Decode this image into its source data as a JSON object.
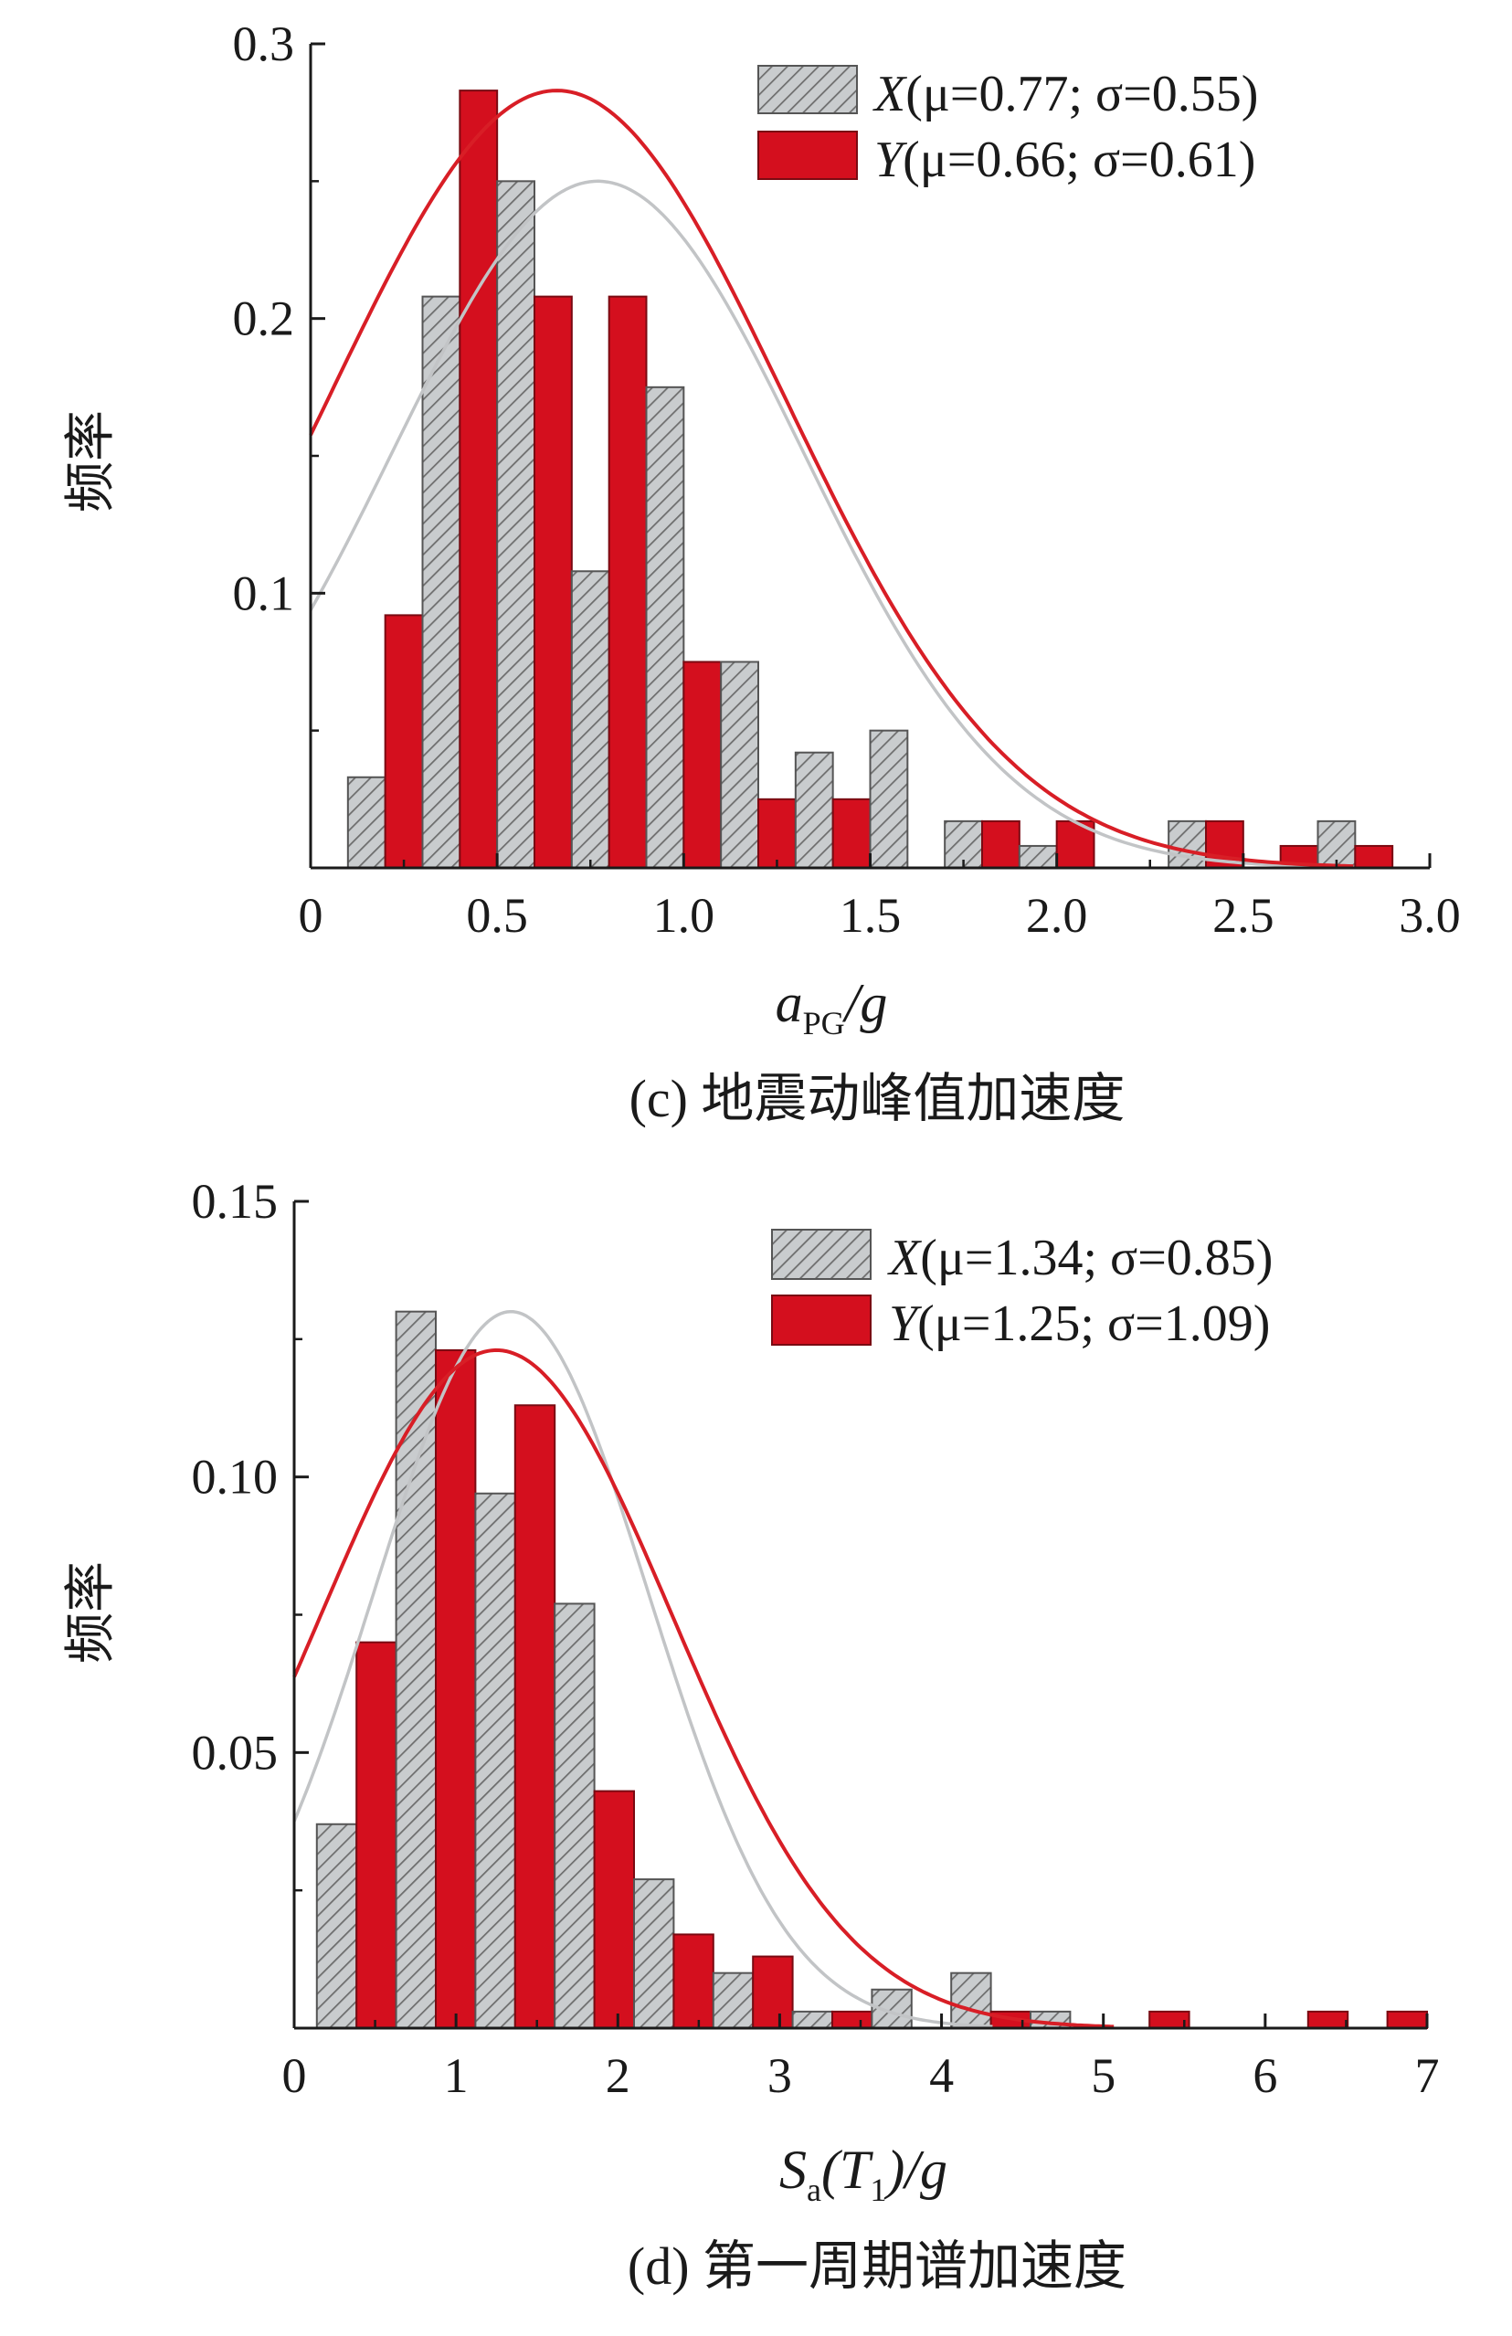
{
  "colors": {
    "x_bar_fill": "#c9ccce",
    "x_bar_hatch": "#6d6d6d",
    "y_bar_fill": "#d40f1e",
    "x_curve": "#c2c4c6",
    "y_curve": "#d81e26"
  },
  "chart_data": [
    {
      "type": "bar",
      "caption": "(c) 地震动峰值加速度",
      "ylabel": "频率",
      "xlabel": {
        "main": "a",
        "sub": "PG",
        "tail": "/g"
      },
      "xlim": [
        0,
        3.0
      ],
      "ylim": [
        0,
        0.3
      ],
      "xticks": [
        0,
        0.5,
        1.0,
        1.5,
        2.0,
        2.5,
        3.0
      ],
      "xtick_labels": [
        "0",
        "0.5",
        "1.0",
        "1.5",
        "2.0",
        "2.5",
        "3.0"
      ],
      "yticks": [
        0.1,
        0.2,
        0.3
      ],
      "ytick_labels": [
        "0.1",
        "0.2",
        "0.3"
      ],
      "x_minor_ticks": [
        0.25,
        0.75,
        1.25,
        1.75,
        2.25,
        2.75
      ],
      "y_minor_ticks": [
        0.05,
        0.15,
        0.25
      ],
      "bin_edges": [
        0.1,
        0.3,
        0.5,
        0.7,
        0.9,
        1.1,
        1.3,
        1.5,
        1.7,
        1.9,
        2.1,
        2.3,
        2.5,
        2.7,
        2.9
      ],
      "legend_position": "top-right",
      "series": [
        {
          "id": "X",
          "name": "X",
          "legend_stats": "(μ=0.77; σ=0.55)",
          "mu": 0.77,
          "sigma": 0.55,
          "values": [
            0.033,
            0.208,
            0.25,
            0.108,
            0.175,
            0.075,
            0.042,
            0.05,
            0.017,
            0.008,
            0,
            0.017,
            0,
            0.017
          ]
        },
        {
          "id": "Y",
          "name": "Y",
          "legend_stats": "(μ=0.66; σ=0.61)",
          "mu": 0.66,
          "sigma": 0.61,
          "values": [
            0.092,
            0.283,
            0.208,
            0.208,
            0.075,
            0.025,
            0.025,
            0,
            0.017,
            0.017,
            0,
            0.017,
            0.008,
            0.008
          ]
        }
      ],
      "curve_peaks": {
        "X": 0.25,
        "Y": 0.283
      }
    },
    {
      "type": "bar",
      "caption": "(d) 第一周期谱加速度",
      "ylabel": "频率",
      "xlabel": {
        "main": "S",
        "sub": "a",
        "paren": "(T",
        "paren_sub": "1",
        "tail": ")/g"
      },
      "xlim": [
        0,
        7
      ],
      "ylim": [
        0,
        0.15
      ],
      "xticks": [
        0,
        1,
        2,
        3,
        4,
        5,
        6,
        7
      ],
      "xtick_labels": [
        "0",
        "1",
        "2",
        "3",
        "4",
        "5",
        "6",
        "7"
      ],
      "yticks": [
        0.05,
        0.1,
        0.15
      ],
      "ytick_labels": [
        "0.05",
        "0.10",
        "0.15"
      ],
      "x_minor_ticks": [
        0.5,
        1.5,
        2.5,
        3.5,
        4.5,
        5.5,
        6.5
      ],
      "y_minor_ticks": [
        0.025,
        0.075,
        0.125
      ],
      "bin_edges": [
        0.14,
        0.63,
        1.12,
        1.61,
        2.1,
        2.59,
        3.08,
        3.57,
        4.06,
        4.55,
        5.04,
        5.53,
        6.02,
        6.51,
        7.0
      ],
      "legend_position": "top-right",
      "series": [
        {
          "id": "X",
          "name": "X",
          "legend_stats": "(μ=1.34; σ=0.85)",
          "mu": 1.34,
          "sigma": 0.85,
          "values": [
            0.037,
            0.13,
            0.097,
            0.077,
            0.027,
            0.01,
            0.003,
            0.007,
            0.01,
            0.003,
            0,
            0,
            0,
            0
          ]
        },
        {
          "id": "Y",
          "name": "Y",
          "legend_stats": "(μ=1.25; σ=1.09)",
          "mu": 1.25,
          "sigma": 1.09,
          "values": [
            0.07,
            0.123,
            0.113,
            0.043,
            0.017,
            0.013,
            0.003,
            0,
            0.003,
            0,
            0.003,
            0,
            0.003,
            0.003
          ]
        }
      ],
      "curve_peaks": {
        "X": 0.13,
        "Y": 0.123
      }
    }
  ]
}
